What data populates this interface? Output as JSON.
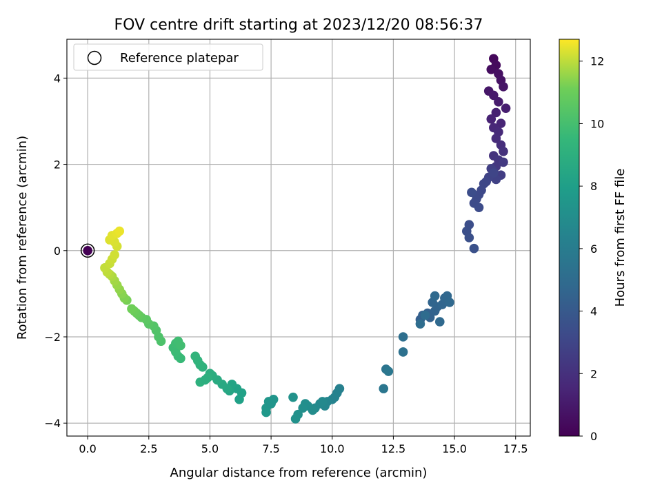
{
  "chart_data": {
    "type": "scatter",
    "title": "FOV centre drift starting at 2023/12/20 08:56:37",
    "xlabel": "Angular distance from reference (arcmin)",
    "ylabel": "Rotation from reference (arcmin)",
    "xlim": [
      -0.85,
      18.1
    ],
    "ylim": [
      -4.3,
      4.9
    ],
    "xticks": [
      0.0,
      2.5,
      5.0,
      7.5,
      10.0,
      12.5,
      15.0,
      17.5
    ],
    "xtick_labels": [
      "0.0",
      "2.5",
      "5.0",
      "7.5",
      "10.0",
      "12.5",
      "15.0",
      "17.5"
    ],
    "yticks": [
      -4,
      -2,
      0,
      2,
      4
    ],
    "ytick_labels": [
      "−4",
      "−2",
      "0",
      "2",
      "4"
    ],
    "grid": true,
    "legend": {
      "position": "top-left",
      "entries": [
        "Reference platepar"
      ]
    },
    "reference_point": {
      "x": 0.0,
      "y": 0.0,
      "label": "Reference platepar"
    },
    "colorbar": {
      "label": "Hours from first FF file",
      "colormap": "viridis",
      "range": [
        0,
        12.7
      ],
      "ticks": [
        0,
        2,
        4,
        6,
        8,
        10,
        12
      ],
      "tick_labels": [
        "0",
        "2",
        "4",
        "6",
        "8",
        "10",
        "12"
      ]
    },
    "series": [
      {
        "x": [
          16.6,
          16.7,
          16.5,
          16.8,
          16.9,
          17.0,
          16.4,
          16.6,
          16.8,
          17.1,
          16.7,
          16.5,
          16.9,
          16.6,
          16.8,
          16.7,
          16.9,
          17.0,
          16.6,
          16.8,
          16.7,
          17.0,
          16.6,
          16.9,
          16.5,
          16.7,
          16.4,
          16.6,
          16.3,
          16.2,
          16.1,
          16.0,
          15.9,
          15.8,
          16.0,
          15.7,
          15.6,
          15.5,
          15.6,
          15.8,
          13.6,
          13.7,
          13.9,
          14.0,
          14.2,
          14.3,
          14.1,
          14.5,
          14.6,
          14.7,
          14.8,
          14.4,
          14.2,
          13.8,
          13.6,
          12.9,
          12.9,
          12.2,
          12.1,
          12.3,
          10.3,
          10.2,
          10.0,
          9.8,
          9.7,
          9.5,
          9.3,
          9.2,
          9.0,
          8.9,
          8.8,
          8.6,
          8.5,
          8.4,
          10.1,
          9.6,
          7.6,
          7.4,
          7.3,
          7.3,
          7.5,
          6.2,
          6.3,
          6.1,
          5.9,
          5.8,
          5.7,
          5.5,
          5.3,
          5.1,
          5.0,
          4.9,
          4.7,
          4.6,
          4.5,
          4.4,
          4.6,
          4.8,
          3.8,
          3.7,
          3.6,
          3.5,
          3.6,
          3.7,
          3.8,
          3.0,
          2.9,
          2.8,
          2.7,
          2.5,
          2.4,
          2.2,
          2.1,
          2.0,
          1.9,
          1.8,
          1.6,
          1.5,
          1.4,
          1.3,
          1.2,
          1.1,
          1.0,
          0.9,
          0.8,
          0.7,
          0.9,
          1.0,
          1.1,
          1.2,
          1.1,
          0.9,
          1.0,
          1.2,
          1.3
        ],
        "y": [
          4.45,
          4.3,
          4.2,
          4.1,
          3.95,
          3.8,
          3.7,
          3.6,
          3.45,
          3.3,
          3.2,
          3.05,
          2.95,
          2.85,
          2.75,
          2.6,
          2.45,
          2.3,
          2.2,
          2.1,
          1.95,
          2.05,
          1.85,
          1.75,
          1.9,
          1.65,
          1.7,
          1.8,
          1.6,
          1.55,
          1.4,
          1.3,
          1.2,
          1.1,
          1.0,
          1.35,
          0.6,
          0.45,
          0.3,
          0.05,
          -1.6,
          -1.5,
          -1.45,
          -1.55,
          -1.4,
          -1.3,
          -1.2,
          -1.25,
          -1.1,
          -1.05,
          -1.2,
          -1.65,
          -1.05,
          -1.5,
          -1.7,
          -2.0,
          -2.35,
          -2.75,
          -3.2,
          -2.8,
          -3.2,
          -3.3,
          -3.45,
          -3.5,
          -3.6,
          -3.55,
          -3.65,
          -3.7,
          -3.6,
          -3.55,
          -3.65,
          -3.8,
          -3.9,
          -3.4,
          -3.4,
          -3.5,
          -3.45,
          -3.5,
          -3.65,
          -3.75,
          -3.55,
          -3.45,
          -3.3,
          -3.2,
          -3.1,
          -3.25,
          -3.2,
          -3.1,
          -3.0,
          -2.9,
          -2.85,
          -2.95,
          -2.7,
          -2.65,
          -2.55,
          -2.45,
          -3.05,
          -3.0,
          -2.5,
          -2.45,
          -2.35,
          -2.25,
          -2.15,
          -2.1,
          -2.2,
          -2.1,
          -2.0,
          -1.85,
          -1.75,
          -1.7,
          -1.6,
          -1.55,
          -1.5,
          -1.45,
          -1.4,
          -1.35,
          -1.15,
          -1.1,
          -1.0,
          -0.9,
          -0.8,
          -0.7,
          -0.6,
          -0.55,
          -0.5,
          -0.4,
          -0.3,
          -0.2,
          -0.1,
          0.1,
          0.2,
          0.25,
          0.35,
          0.4,
          0.45
        ],
        "hours": [
          0.3,
          0.4,
          0.5,
          0.6,
          0.7,
          0.8,
          0.9,
          1.0,
          1.1,
          1.2,
          1.3,
          1.4,
          1.5,
          1.6,
          1.7,
          1.8,
          1.9,
          2.0,
          2.1,
          2.2,
          2.3,
          2.4,
          2.5,
          2.6,
          2.7,
          2.8,
          2.9,
          3.0,
          3.05,
          3.1,
          3.15,
          3.2,
          3.25,
          3.3,
          3.35,
          3.4,
          3.45,
          3.5,
          3.55,
          3.6,
          4.3,
          4.35,
          4.4,
          4.45,
          4.5,
          4.55,
          4.6,
          4.65,
          4.7,
          4.75,
          4.8,
          4.85,
          4.9,
          5.0,
          5.05,
          5.2,
          5.3,
          5.5,
          5.6,
          5.7,
          6.2,
          6.3,
          6.4,
          6.5,
          6.6,
          6.7,
          6.8,
          6.9,
          7.0,
          7.05,
          7.1,
          7.15,
          7.2,
          7.25,
          6.35,
          6.75,
          7.4,
          7.5,
          7.55,
          7.6,
          7.45,
          8.1,
          8.15,
          8.2,
          8.3,
          8.4,
          8.5,
          8.6,
          8.7,
          8.8,
          8.9,
          9.0,
          9.1,
          9.2,
          9.25,
          9.3,
          9.05,
          8.95,
          9.6,
          9.65,
          9.7,
          9.75,
          9.8,
          9.85,
          9.9,
          10.2,
          10.25,
          10.3,
          10.4,
          10.5,
          10.6,
          10.7,
          10.8,
          10.9,
          11.0,
          11.1,
          11.2,
          11.3,
          11.4,
          11.5,
          11.6,
          11.7,
          11.8,
          11.9,
          12.0,
          12.05,
          12.1,
          12.15,
          12.2,
          12.25,
          12.3,
          12.35,
          12.4,
          12.45,
          12.5,
          12.6
        ]
      }
    ]
  }
}
